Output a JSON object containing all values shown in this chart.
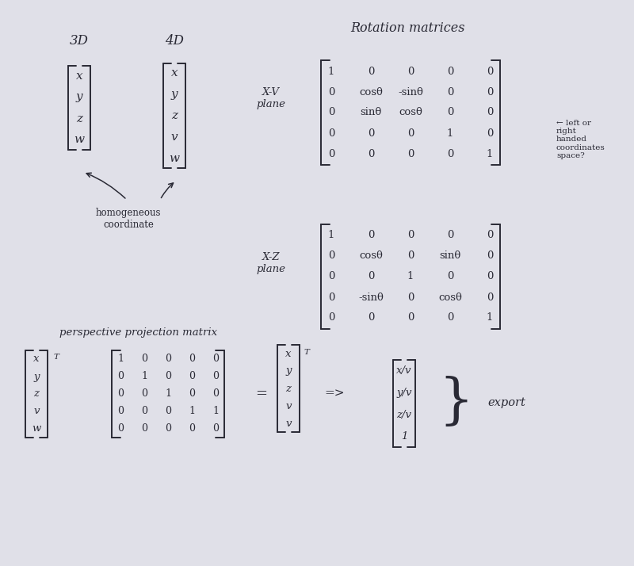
{
  "bg_color": "#e0e0e8",
  "text_color": "#2a2a35",
  "title": "Rotation matrices",
  "section_3d_label": "3D",
  "section_4d_label": "4D",
  "vec_3d": [
    "x",
    "y",
    "z",
    "w"
  ],
  "vec_4d": [
    "x",
    "y",
    "z",
    "v",
    "w"
  ],
  "homogeneous_note": "homogeneous\ncoordinate",
  "xv_label": "X-V\nplane",
  "xz_label": "X-Z\nplane",
  "xv_matrix": [
    [
      "1",
      "0",
      "0",
      "0",
      "0"
    ],
    [
      "0",
      "cosθ",
      "-sinθ",
      "0",
      "0"
    ],
    [
      "0",
      "sinθ",
      "cosθ",
      "0",
      "0"
    ],
    [
      "0",
      "0",
      "0",
      "1",
      "0"
    ],
    [
      "0",
      "0",
      "0",
      "0",
      "1"
    ]
  ],
  "xz_matrix": [
    [
      "1",
      "0",
      "0",
      "0",
      "0"
    ],
    [
      "0",
      "cosθ",
      "0",
      "sinθ",
      "0"
    ],
    [
      "0",
      "0",
      "1",
      "0",
      "0"
    ],
    [
      "0",
      "-sinθ",
      "0",
      "cosθ",
      "0"
    ],
    [
      "0",
      "0",
      "0",
      "0",
      "1"
    ]
  ],
  "right_note": "← left or\nright\nhanded\ncoordinates\nspace?",
  "proj_label": "perspective projection matrix",
  "proj_vec_left": [
    "x",
    "y",
    "z",
    "v",
    "w"
  ],
  "proj_matrix": [
    [
      "1",
      "0",
      "0",
      "0",
      "0"
    ],
    [
      "0",
      "1",
      "0",
      "0",
      "0"
    ],
    [
      "0",
      "0",
      "1",
      "0",
      "0"
    ],
    [
      "0",
      "0",
      "0",
      "1",
      "1"
    ],
    [
      "0",
      "0",
      "0",
      "0",
      "0"
    ]
  ],
  "proj_vec_right": [
    "x",
    "y",
    "z",
    "v",
    "v"
  ],
  "result_vec": [
    "x/v",
    "y/v",
    "z/v",
    "1"
  ],
  "export_label": "export",
  "figsize": [
    8.0,
    7.14
  ],
  "dpi": 100
}
